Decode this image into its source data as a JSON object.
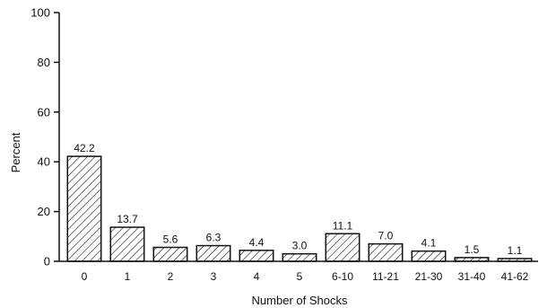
{
  "chart_data": {
    "type": "bar",
    "categories": [
      "0",
      "1",
      "2",
      "3",
      "4",
      "5",
      "6-10",
      "11-21",
      "21-30",
      "31-40",
      "41-62"
    ],
    "values": [
      42.2,
      13.7,
      5.6,
      6.3,
      4.4,
      3.0,
      11.1,
      7.0,
      4.1,
      1.5,
      1.1
    ],
    "value_labels": [
      "42.2",
      "13.7",
      "5.6",
      "6.3",
      "4.4",
      "3.0",
      "11.1",
      "7.0",
      "4.1",
      "1.5",
      "1.1"
    ],
    "title": "",
    "xlabel": "Number of Shocks",
    "ylabel": "Percent",
    "ylim": [
      0,
      100
    ],
    "yticks": [
      "0",
      "20",
      "40",
      "60",
      "80",
      "100"
    ],
    "grid": false,
    "bar_fill": "diagonal-hatch",
    "colors": {
      "ink": "#111111",
      "background": "#ffffff"
    }
  }
}
